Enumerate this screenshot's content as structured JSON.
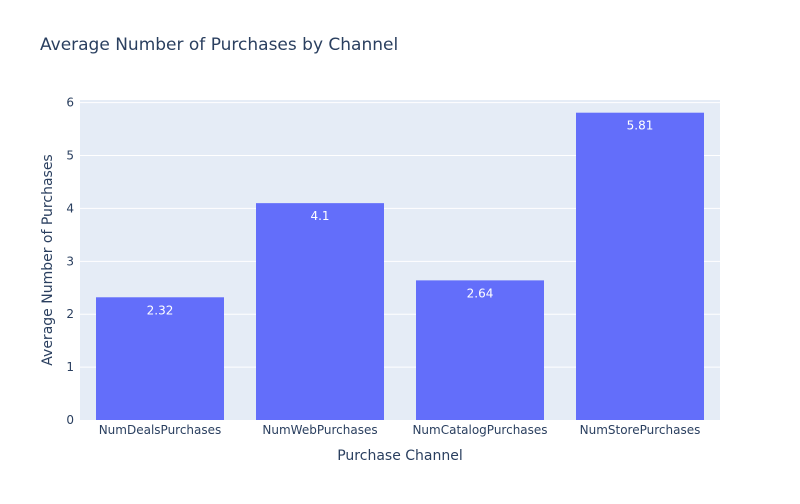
{
  "chart_data": {
    "type": "bar",
    "title": "Average Number of Purchases by Channel",
    "xlabel": "Purchase Channel",
    "ylabel": "Average Number of Purchases",
    "categories": [
      "NumDealsPurchases",
      "NumWebPurchases",
      "NumCatalogPurchases",
      "NumStorePurchases"
    ],
    "values": [
      2.32,
      4.1,
      2.64,
      5.81
    ],
    "data_labels": [
      "2.32",
      "4.1",
      "2.64",
      "5.81"
    ],
    "ylim": [
      0,
      6.05
    ],
    "yticks": [
      0,
      1,
      2,
      3,
      4,
      5,
      6
    ],
    "grid": true,
    "colors": {
      "bar": "#636efa",
      "plot_bg": "#e5ecf6",
      "grid": "#ffffff",
      "text": "#2a3f5f",
      "label_text": "#ffffff"
    }
  }
}
